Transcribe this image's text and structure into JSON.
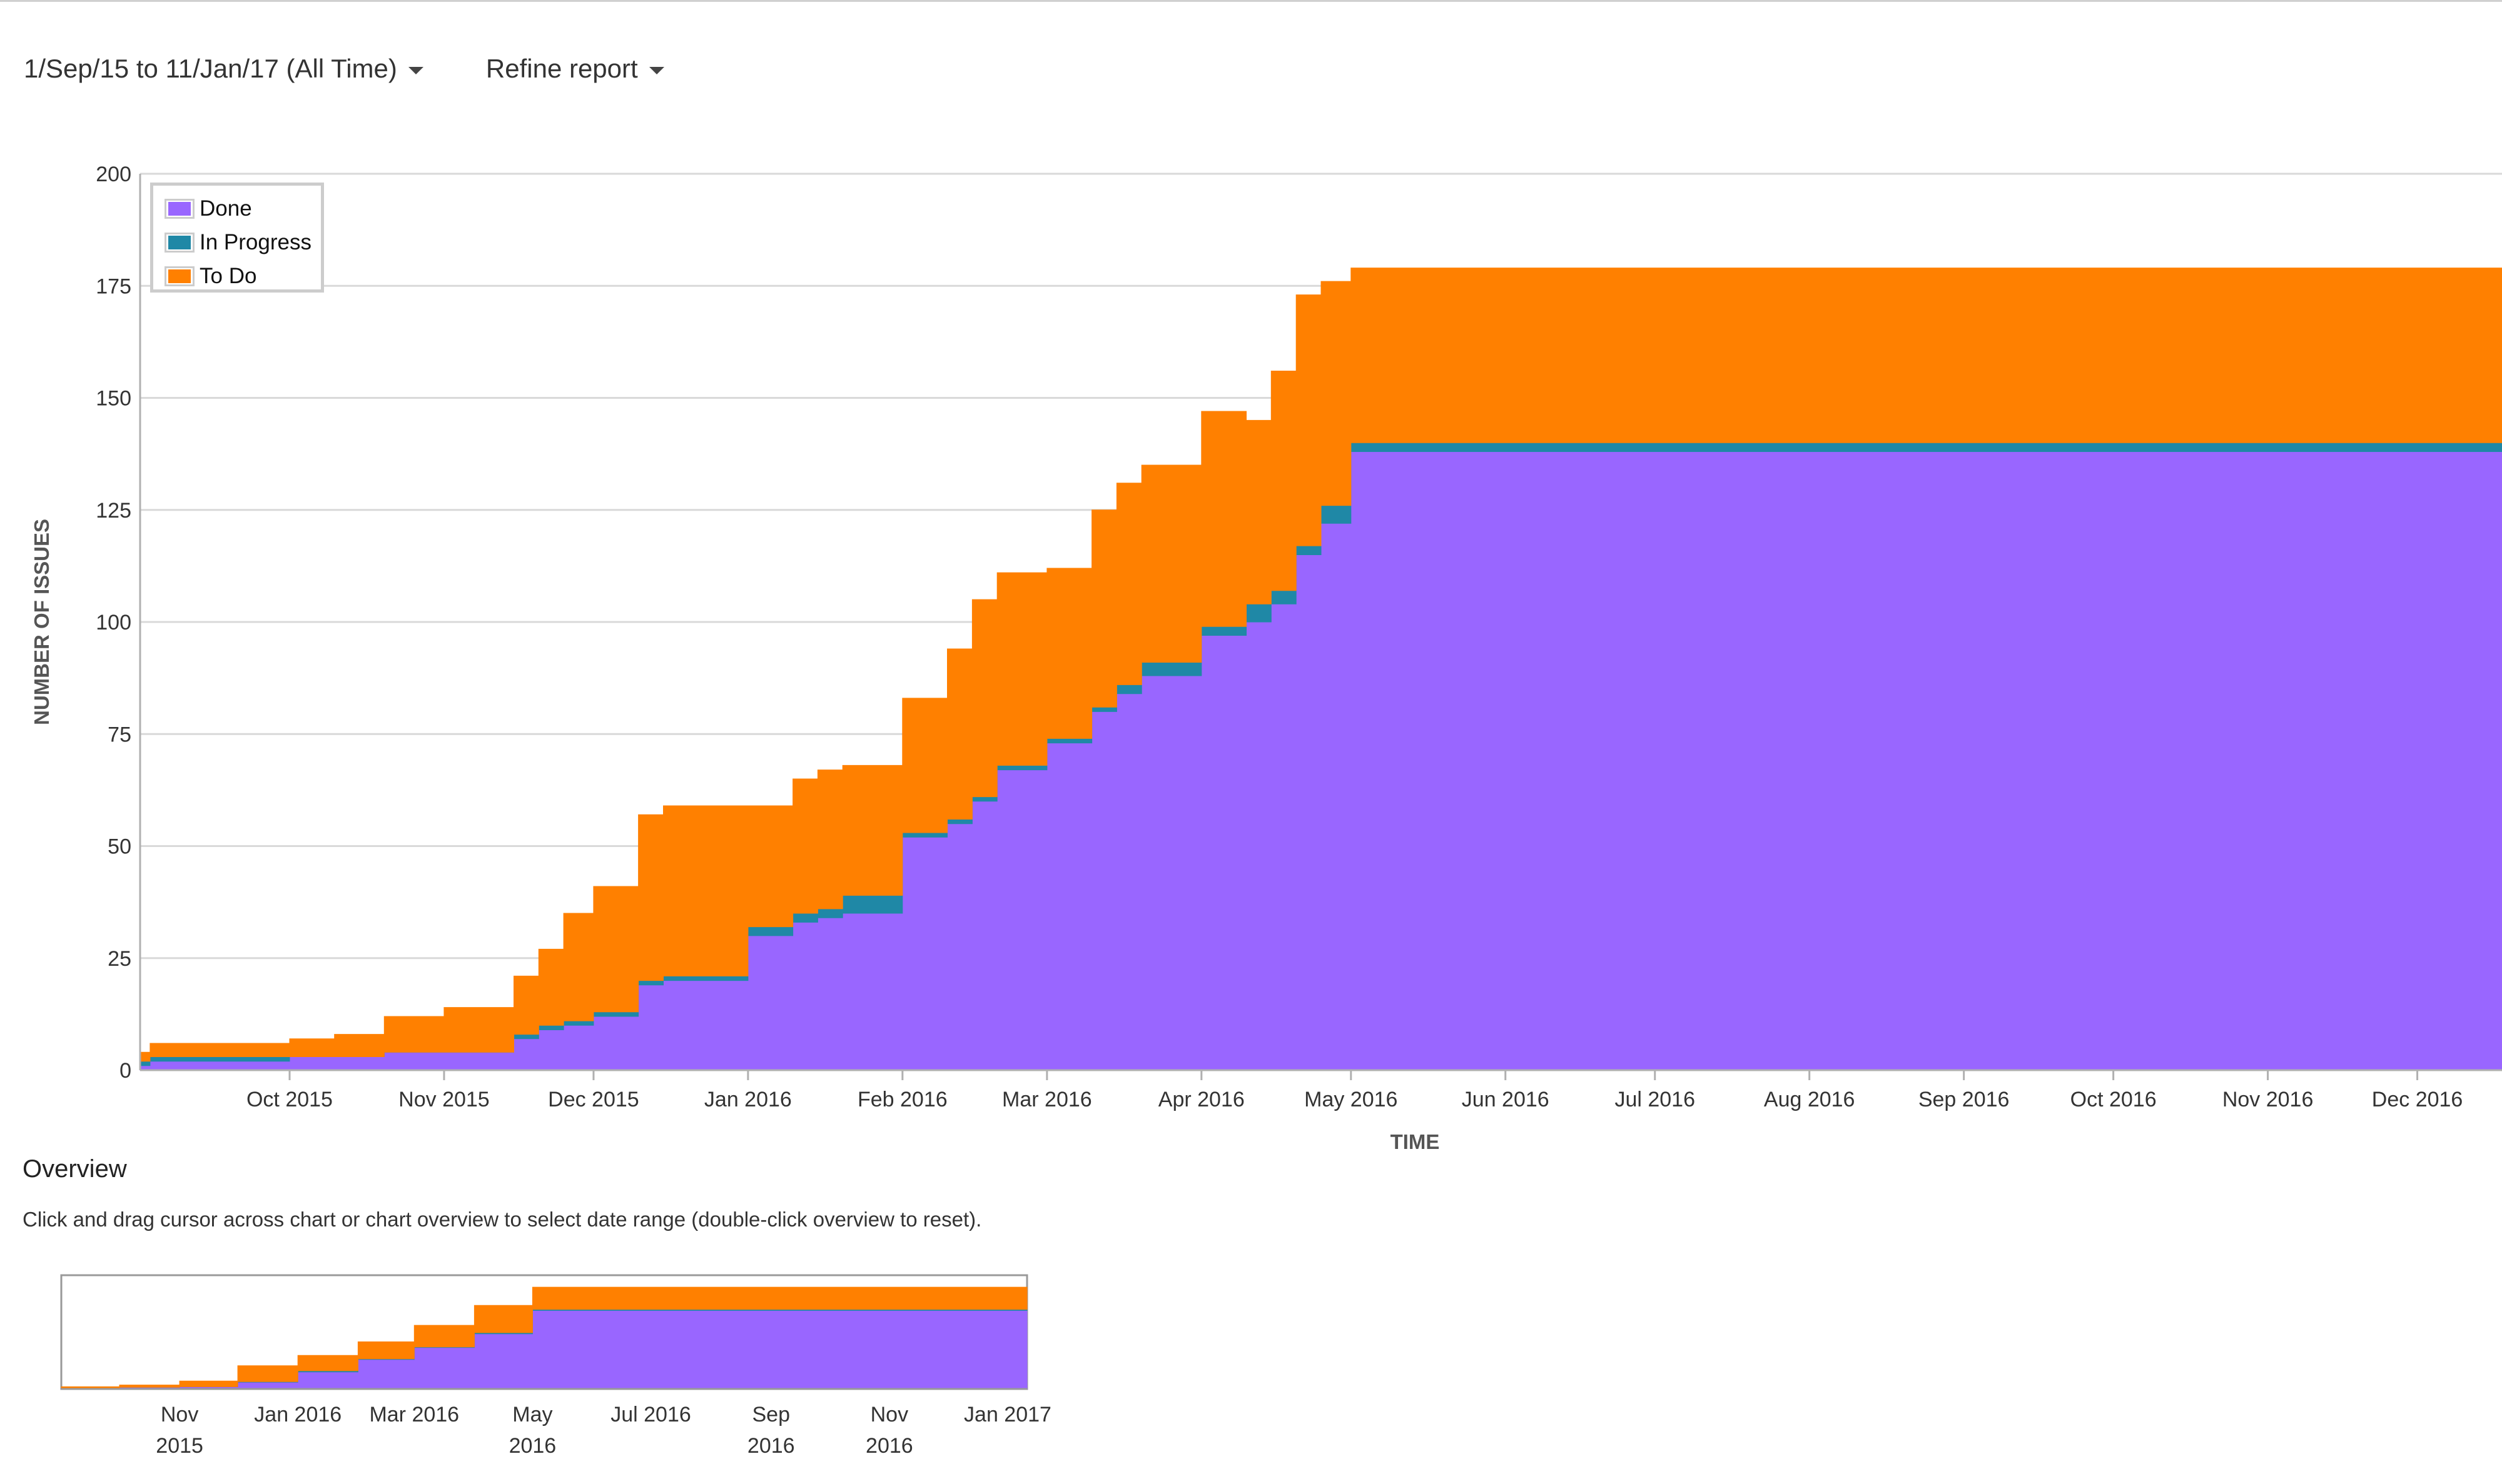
{
  "toolbar": {
    "date_range_label": "1/Sep/15 to 11/Jan/17 (All Time)",
    "refine_label": "Refine report"
  },
  "overview": {
    "title": "Overview",
    "hint": "Click and drag cursor across chart or chart overview to select date range (double-click overview to reset)."
  },
  "colors": {
    "done": "#9966ff",
    "in_progress": "#1f88a6",
    "to_do": "#ff8000",
    "grid": "#d9d9d9",
    "axis_text": "#333333"
  },
  "chart_data": [
    {
      "type": "area",
      "stacked": true,
      "xlabel": "TIME",
      "ylabel": "NUMBER OF ISSUES",
      "ylim": [
        0,
        200
      ],
      "xlim": [
        "2015-09-01",
        "2016-12-18"
      ],
      "yticks": [
        0,
        25,
        50,
        75,
        100,
        125,
        150,
        175,
        200
      ],
      "xticks": [
        {
          "date": "2015-10-01",
          "label": "Oct 2015"
        },
        {
          "date": "2015-11-01",
          "label": "Nov 2015"
        },
        {
          "date": "2015-12-01",
          "label": "Dec 2015"
        },
        {
          "date": "2016-01-01",
          "label": "Jan 2016"
        },
        {
          "date": "2016-02-01",
          "label": "Feb 2016"
        },
        {
          "date": "2016-03-01",
          "label": "Mar 2016"
        },
        {
          "date": "2016-04-01",
          "label": "Apr 2016"
        },
        {
          "date": "2016-05-01",
          "label": "May 2016"
        },
        {
          "date": "2016-06-01",
          "label": "Jun 2016"
        },
        {
          "date": "2016-07-01",
          "label": "Jul 2016"
        },
        {
          "date": "2016-08-01",
          "label": "Aug 2016"
        },
        {
          "date": "2016-09-01",
          "label": "Sep 2016"
        },
        {
          "date": "2016-10-01",
          "label": "Oct 2016"
        },
        {
          "date": "2016-11-01",
          "label": "Nov 2016"
        },
        {
          "date": "2016-12-01",
          "label": "Dec 2016"
        }
      ],
      "grid": true,
      "legend": "top-left",
      "x": [
        "2015-09-01",
        "2015-09-03",
        "2015-10-01",
        "2015-10-10",
        "2015-10-20",
        "2015-11-01",
        "2015-11-15",
        "2015-11-20",
        "2015-11-25",
        "2015-12-01",
        "2015-12-10",
        "2015-12-15",
        "2016-01-01",
        "2016-01-10",
        "2016-01-15",
        "2016-01-20",
        "2016-02-01",
        "2016-02-10",
        "2016-02-15",
        "2016-02-20",
        "2016-03-01",
        "2016-03-10",
        "2016-03-15",
        "2016-03-20",
        "2016-04-01",
        "2016-04-10",
        "2016-04-15",
        "2016-04-20",
        "2016-04-25",
        "2016-05-01",
        "2016-06-01",
        "2016-08-01",
        "2016-10-01",
        "2016-12-18"
      ],
      "series": [
        {
          "name": "Done",
          "values": [
            1,
            2,
            3,
            3,
            4,
            4,
            7,
            9,
            10,
            12,
            19,
            20,
            30,
            33,
            34,
            35,
            52,
            55,
            60,
            67,
            73,
            80,
            84,
            88,
            97,
            100,
            104,
            115,
            122,
            138,
            138,
            138,
            138,
            138
          ]
        },
        {
          "name": "In Progress",
          "values": [
            1,
            1,
            0,
            0,
            0,
            0,
            1,
            1,
            1,
            1,
            1,
            1,
            2,
            2,
            2,
            4,
            1,
            1,
            1,
            1,
            1,
            1,
            2,
            3,
            2,
            4,
            3,
            2,
            4,
            2,
            2,
            2,
            2,
            2
          ]
        },
        {
          "name": "To Do",
          "values": [
            2,
            3,
            4,
            5,
            8,
            10,
            13,
            17,
            24,
            28,
            37,
            38,
            27,
            30,
            31,
            29,
            30,
            38,
            44,
            43,
            38,
            44,
            45,
            44,
            48,
            41,
            49,
            56,
            50,
            39,
            39,
            39,
            39,
            39
          ]
        }
      ]
    },
    {
      "type": "area",
      "stacked": true,
      "xlim": [
        "2015-09-01",
        "2017-01-11"
      ],
      "ylim": [
        0,
        200
      ],
      "xticks": [
        {
          "date": "2015-11-01",
          "label": "Nov\n2015"
        },
        {
          "date": "2016-01-01",
          "label": "Jan 2016"
        },
        {
          "date": "2016-03-01",
          "label": "Mar 2016"
        },
        {
          "date": "2016-05-01",
          "label": "May\n2016"
        },
        {
          "date": "2016-07-01",
          "label": "Jul 2016"
        },
        {
          "date": "2016-09-01",
          "label": "Sep\n2016"
        },
        {
          "date": "2016-11-01",
          "label": "Nov\n2016"
        },
        {
          "date": "2017-01-01",
          "label": "Jan 2017"
        }
      ],
      "x": [
        "2015-09-01",
        "2015-10-01",
        "2015-11-01",
        "2015-12-01",
        "2016-01-01",
        "2016-02-01",
        "2016-03-01",
        "2016-04-01",
        "2016-05-01",
        "2016-08-01",
        "2017-01-11"
      ],
      "series": [
        {
          "name": "Done",
          "values": [
            1,
            3,
            4,
            12,
            30,
            52,
            73,
            97,
            138,
            138,
            138
          ]
        },
        {
          "name": "In Progress",
          "values": [
            1,
            0,
            0,
            1,
            2,
            1,
            1,
            2,
            2,
            2,
            2
          ]
        },
        {
          "name": "To Do",
          "values": [
            2,
            4,
            10,
            28,
            27,
            30,
            38,
            48,
            39,
            39,
            39
          ]
        }
      ]
    }
  ]
}
